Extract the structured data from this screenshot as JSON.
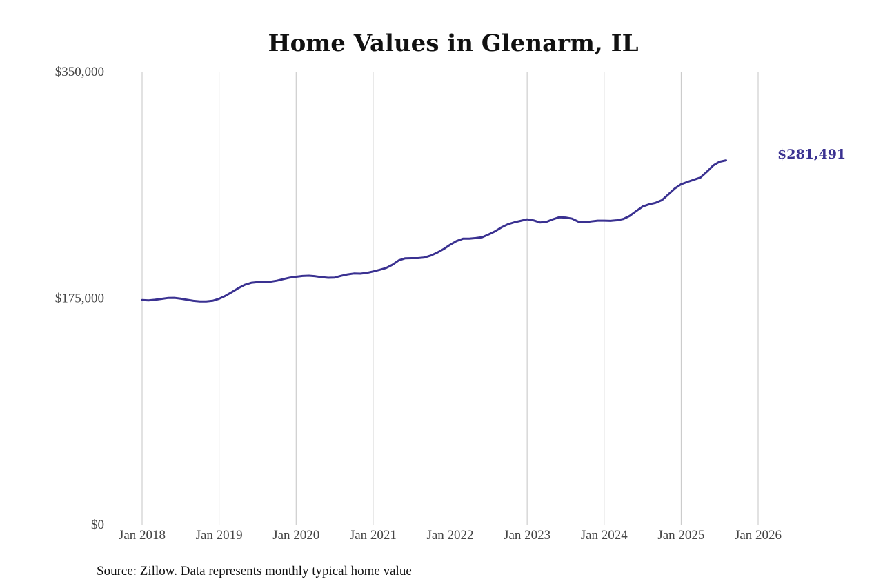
{
  "colors": {
    "line": "#3a3191",
    "grid": "#c4c4c4",
    "text": "#111111",
    "tick": "#444444"
  },
  "source_note": "Source: Zillow. Data represents monthly typical home value",
  "chart_data": {
    "type": "line",
    "title": "Home Values in Glenarm, IL",
    "xlabel": "",
    "ylabel": "",
    "ylim": [
      0,
      350000
    ],
    "y_ticks": [
      {
        "value": 350000,
        "label": "$350,000"
      },
      {
        "value": 175000,
        "label": "$175,000"
      },
      {
        "value": 0,
        "label": "$0"
      }
    ],
    "x_ticks": [
      {
        "value": "2018-01",
        "label": "Jan 2018"
      },
      {
        "value": "2019-01",
        "label": "Jan 2019"
      },
      {
        "value": "2020-01",
        "label": "Jan 2020"
      },
      {
        "value": "2021-01",
        "label": "Jan 2021"
      },
      {
        "value": "2022-01",
        "label": "Jan 2022"
      },
      {
        "value": "2023-01",
        "label": "Jan 2023"
      },
      {
        "value": "2024-01",
        "label": "Jan 2024"
      },
      {
        "value": "2025-01",
        "label": "Jan 2025"
      },
      {
        "value": "2026-01",
        "label": "Jan 2026"
      }
    ],
    "grid": "vertical",
    "end_label": "$281,491",
    "series": [
      {
        "points": [
          [
            "2018-01",
            173500
          ],
          [
            "2018-02",
            173300
          ],
          [
            "2018-03",
            173700
          ],
          [
            "2018-04",
            174400
          ],
          [
            "2018-05",
            175100
          ],
          [
            "2018-06",
            175200
          ],
          [
            "2018-07",
            174600
          ],
          [
            "2018-08",
            173800
          ],
          [
            "2018-09",
            172900
          ],
          [
            "2018-10",
            172500
          ],
          [
            "2018-11",
            172500
          ],
          [
            "2018-12",
            173000
          ],
          [
            "2019-01",
            174500
          ],
          [
            "2019-02",
            176800
          ],
          [
            "2019-03",
            179700
          ],
          [
            "2019-04",
            182700
          ],
          [
            "2019-05",
            185300
          ],
          [
            "2019-06",
            186800
          ],
          [
            "2019-07",
            187400
          ],
          [
            "2019-08",
            187500
          ],
          [
            "2019-09",
            187700
          ],
          [
            "2019-10",
            188500
          ],
          [
            "2019-11",
            189700
          ],
          [
            "2019-12",
            190800
          ],
          [
            "2020-01",
            191500
          ],
          [
            "2020-02",
            192100
          ],
          [
            "2020-03",
            192300
          ],
          [
            "2020-04",
            191900
          ],
          [
            "2020-05",
            191200
          ],
          [
            "2020-06",
            190700
          ],
          [
            "2020-07",
            190900
          ],
          [
            "2020-08",
            192200
          ],
          [
            "2020-09",
            193300
          ],
          [
            "2020-10",
            194000
          ],
          [
            "2020-11",
            193900
          ],
          [
            "2020-12",
            194500
          ],
          [
            "2021-01",
            195600
          ],
          [
            "2021-02",
            196900
          ],
          [
            "2021-03",
            198300
          ],
          [
            "2021-04",
            200800
          ],
          [
            "2021-05",
            204200
          ],
          [
            "2021-06",
            205800
          ],
          [
            "2021-07",
            205900
          ],
          [
            "2021-08",
            205900
          ],
          [
            "2021-09",
            206400
          ],
          [
            "2021-10",
            207900
          ],
          [
            "2021-11",
            210200
          ],
          [
            "2021-12",
            213000
          ],
          [
            "2022-01",
            216300
          ],
          [
            "2022-02",
            219100
          ],
          [
            "2022-03",
            220900
          ],
          [
            "2022-04",
            221000
          ],
          [
            "2022-05",
            221400
          ],
          [
            "2022-06",
            222100
          ],
          [
            "2022-07",
            224200
          ],
          [
            "2022-08",
            226600
          ],
          [
            "2022-09",
            229700
          ],
          [
            "2022-10",
            232100
          ],
          [
            "2022-11",
            233600
          ],
          [
            "2022-12",
            234700
          ],
          [
            "2023-01",
            235900
          ],
          [
            "2023-02",
            235100
          ],
          [
            "2023-03",
            233500
          ],
          [
            "2023-04",
            233900
          ],
          [
            "2023-05",
            235900
          ],
          [
            "2023-06",
            237500
          ],
          [
            "2023-07",
            237300
          ],
          [
            "2023-08",
            236400
          ],
          [
            "2023-09",
            234100
          ],
          [
            "2023-10",
            233600
          ],
          [
            "2023-11",
            234300
          ],
          [
            "2023-12",
            234900
          ],
          [
            "2024-01",
            234900
          ],
          [
            "2024-02",
            234700
          ],
          [
            "2024-03",
            235200
          ],
          [
            "2024-04",
            236200
          ],
          [
            "2024-05",
            238600
          ],
          [
            "2024-06",
            242300
          ],
          [
            "2024-07",
            245800
          ],
          [
            "2024-08",
            247500
          ],
          [
            "2024-09",
            248600
          ],
          [
            "2024-10",
            250700
          ],
          [
            "2024-11",
            255100
          ],
          [
            "2024-12",
            259700
          ],
          [
            "2025-01",
            263000
          ],
          [
            "2025-02",
            264800
          ],
          [
            "2025-03",
            266500
          ],
          [
            "2025-04",
            268200
          ],
          [
            "2025-05",
            272600
          ],
          [
            "2025-06",
            277500
          ],
          [
            "2025-07",
            280400
          ],
          [
            "2025-08",
            281491
          ]
        ]
      }
    ]
  }
}
